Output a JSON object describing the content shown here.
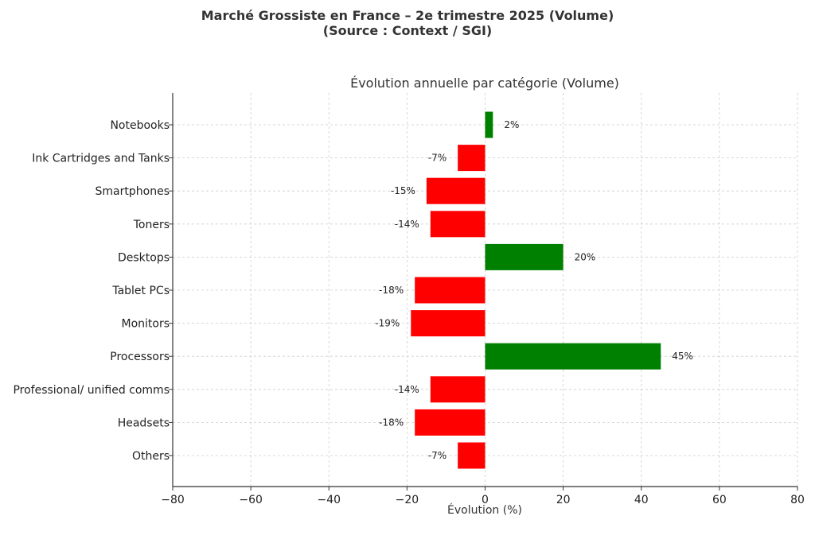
{
  "figure": {
    "suptitle_line1": "Marché Grossiste en France – 2e trimestre 2025 (Volume)",
    "suptitle_line2": "(Source : Context / SGI)"
  },
  "chart_data": {
    "type": "bar",
    "orientation": "horizontal",
    "title": "Évolution annuelle par catégorie (Volume)",
    "xlabel": "Évolution (%)",
    "ylabel": "",
    "xlim": [
      -80,
      80
    ],
    "xticks": [
      -80,
      -60,
      -40,
      -20,
      0,
      20,
      40,
      60,
      80
    ],
    "xtick_labels": [
      "−80",
      "−60",
      "−40",
      "−20",
      "0",
      "20",
      "40",
      "60",
      "80"
    ],
    "grid": true,
    "categories": [
      "Notebooks",
      "Ink Cartridges and Tanks",
      "Smartphones",
      "Toners",
      "Desktops",
      "Tablet PCs",
      "Monitors",
      "Processors",
      "Professional/ unified comms",
      "Headsets",
      "Others"
    ],
    "values": [
      2,
      -7,
      -15,
      -14,
      20,
      -18,
      -19,
      45,
      -14,
      -18,
      -7
    ],
    "data_labels": [
      "2%",
      "-7%",
      "-15%",
      "-14%",
      "20%",
      "-18%",
      "-19%",
      "45%",
      "-14%",
      "-18%",
      "-7%"
    ],
    "colors": {
      "positive": "#008000",
      "negative": "#ff0000",
      "grid": "#cccccc",
      "axis": "#333333"
    }
  }
}
